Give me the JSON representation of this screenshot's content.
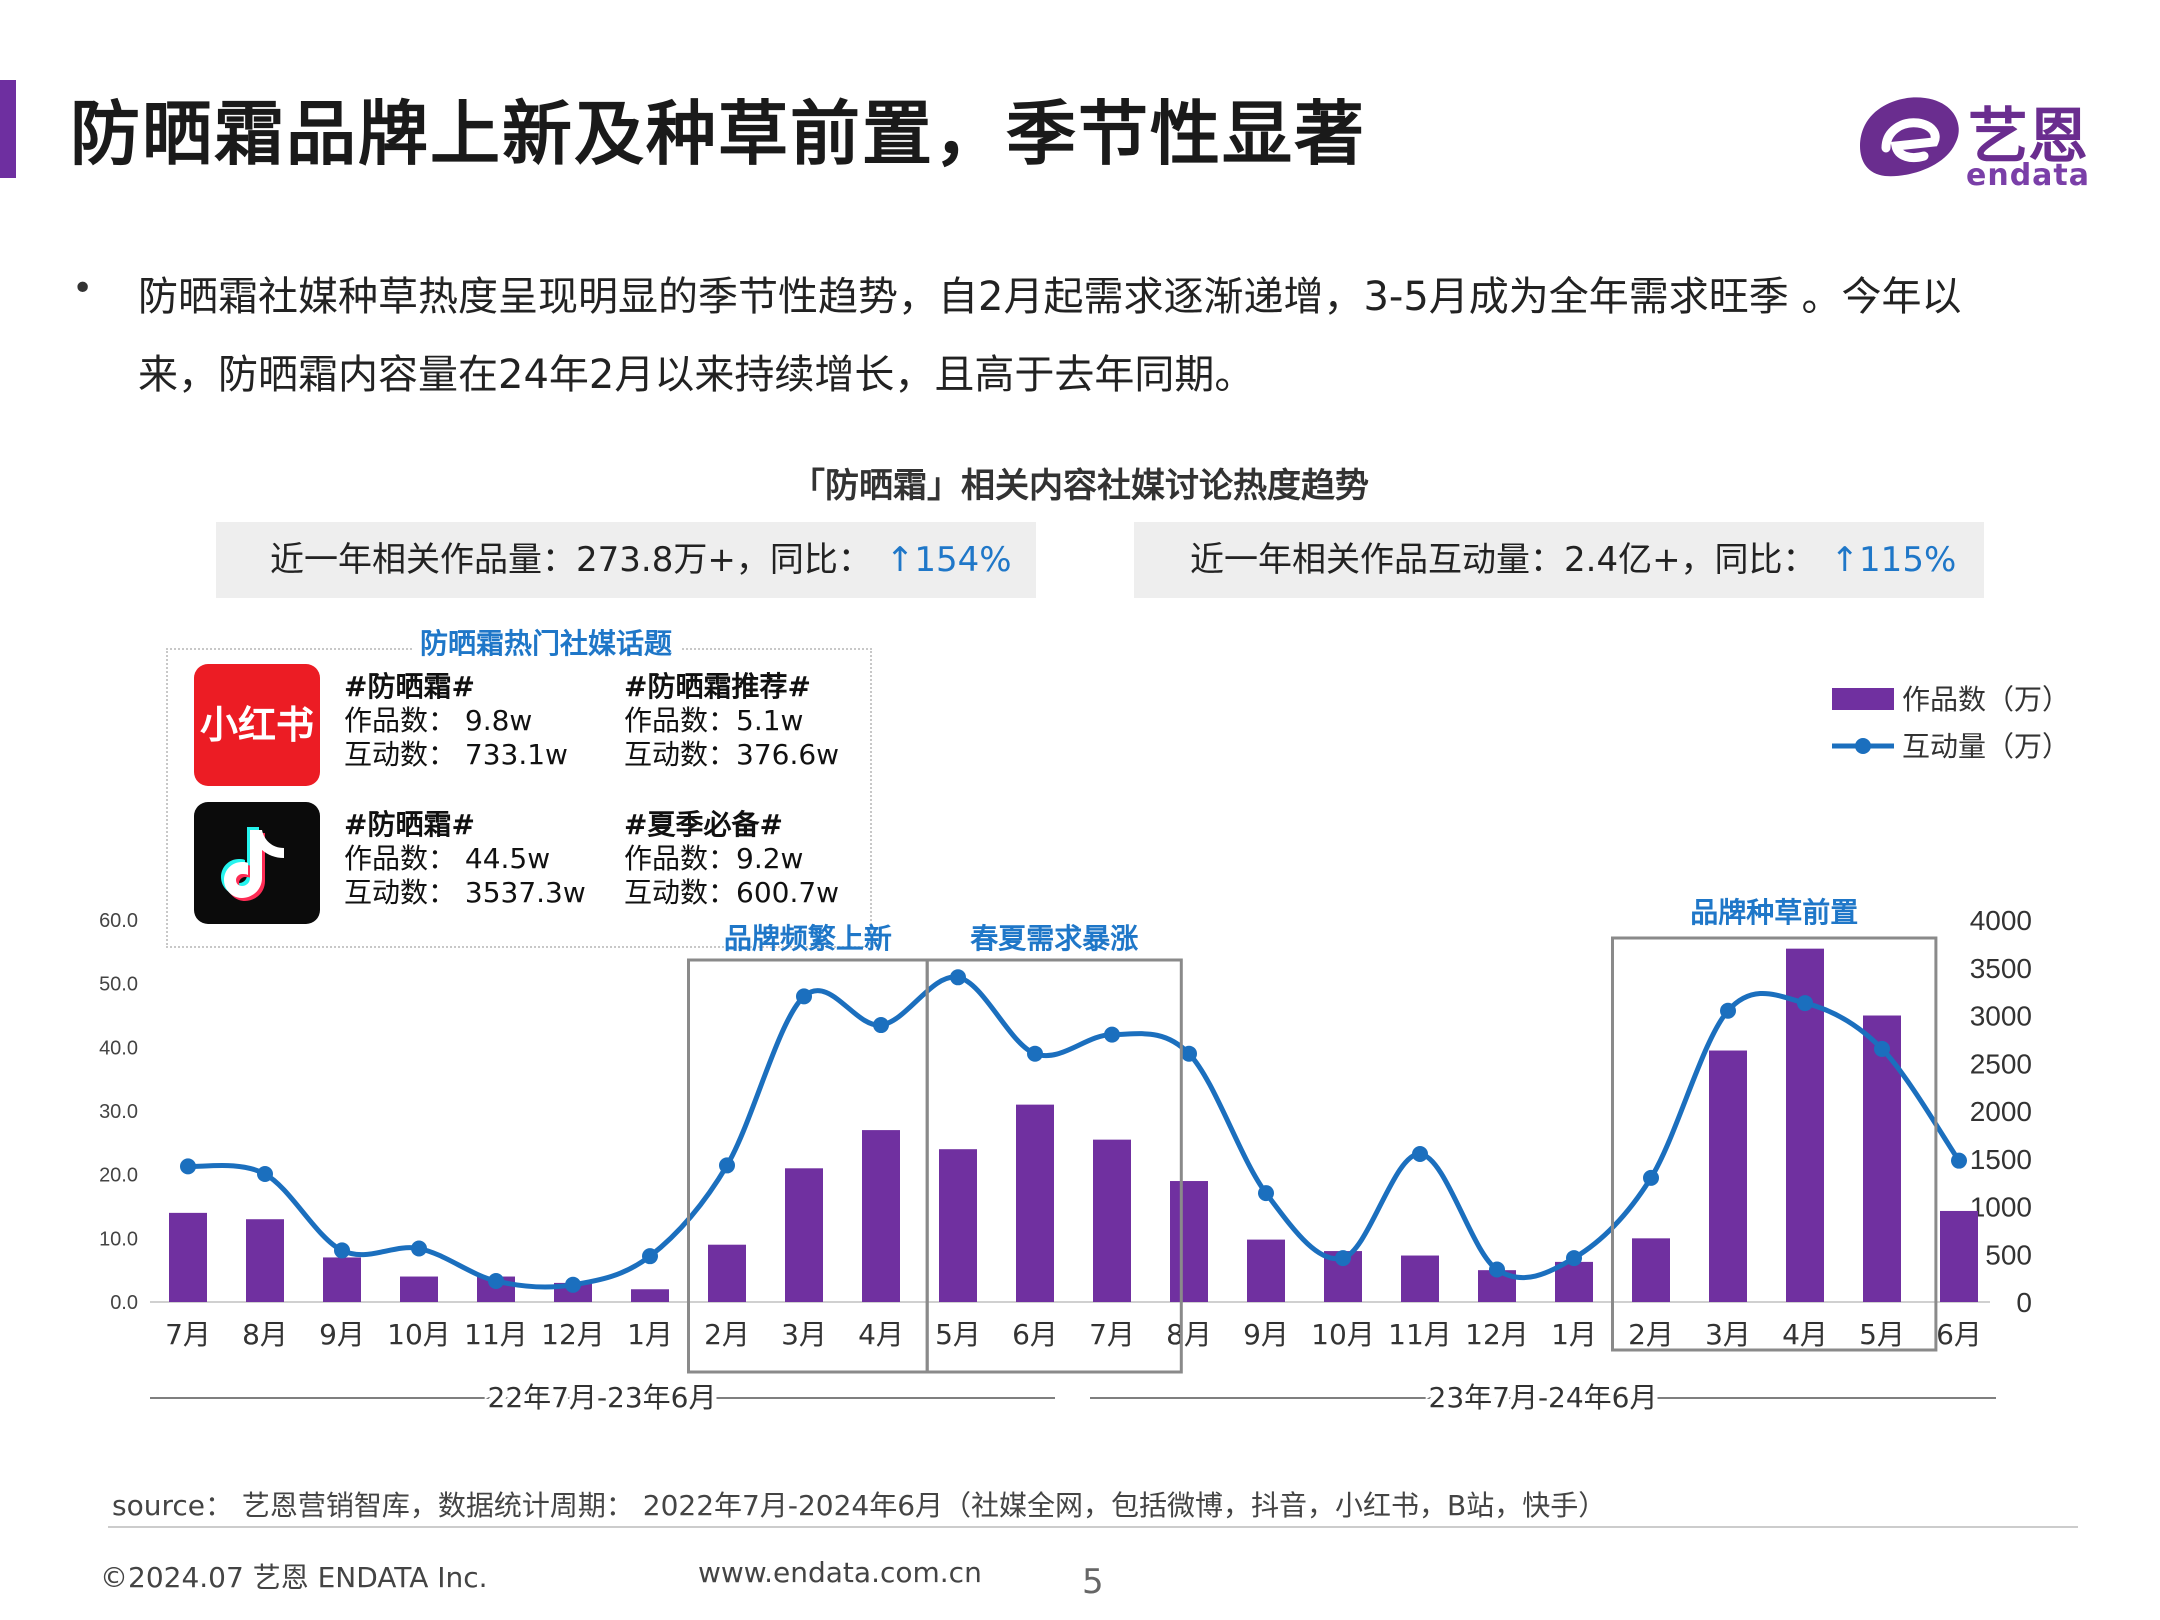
{
  "header": {
    "title": "防晒霜品牌上新及种草前置，季节性显著",
    "logo_cn": "艺恩",
    "logo_en": "endata"
  },
  "bullet": {
    "symbol": "•",
    "text": "防晒霜社媒种草热度呈现明显的季节性趋势，自2月起需求逐渐递增，3-5月成为全年需求旺季 。今年以来，防晒霜内容量在24年2月以来持续增长，且高于去年同期。"
  },
  "chart_title": "「防晒霜」相关内容社媒讨论热度趋势",
  "kpi": {
    "left_label": "近一年相关作品量：273.8万+，同比：",
    "left_value": "↑154%",
    "right_label": "近一年相关作品互动量：2.4亿+，同比：",
    "right_value": "↑115%"
  },
  "topics": {
    "title": "防晒霜热门社媒话题",
    "xhs_icon_text": "小红书",
    "items": [
      {
        "tag": "#防晒霜#",
        "works": "作品数：  9.8w",
        "interactions": "互动数：  733.1w"
      },
      {
        "tag": "#防晒霜推荐#",
        "works": "作品数：5.1w",
        "interactions": "互动数：376.6w"
      },
      {
        "tag": "#防晒霜#",
        "works": "作品数： 44.5w",
        "interactions": "互动数： 3537.3w"
      },
      {
        "tag": "#夏季必备#",
        "works": "作品数：9.2w",
        "interactions": "互动数：600.7w"
      }
    ]
  },
  "chart_data": {
    "type": "bar+line",
    "categories": [
      "7月",
      "8月",
      "9月",
      "10月",
      "11月",
      "12月",
      "1月",
      "2月",
      "3月",
      "4月",
      "5月",
      "6月",
      "7月",
      "8月",
      "9月",
      "10月",
      "11月",
      "12月",
      "1月",
      "2月",
      "3月",
      "4月",
      "5月",
      "6月"
    ],
    "series": [
      {
        "name": "作品数（万）",
        "type": "bar",
        "axis": "left",
        "color": "#7030a0",
        "values": [
          14,
          13,
          7,
          4,
          4,
          3,
          2,
          9,
          21,
          27,
          24,
          31,
          25.5,
          19,
          9.8,
          8,
          7.3,
          5,
          6.3,
          10,
          39.5,
          55.5,
          45,
          14.3
        ]
      },
      {
        "name": "互动量（万）",
        "type": "line",
        "axis": "right",
        "color": "#1b6fbe",
        "values": [
          1420,
          1340,
          540,
          560,
          220,
          180,
          480,
          1430,
          3200,
          2900,
          3400,
          2600,
          2800,
          2600,
          1140,
          460,
          1550,
          340,
          460,
          1300,
          3050,
          3130,
          2650,
          1480
        ]
      }
    ],
    "y_left": {
      "min": 0,
      "max": 60,
      "ticks": [
        "0.0",
        "10.0",
        "20.0",
        "30.0",
        "40.0",
        "50.0",
        "60.0"
      ]
    },
    "y_right": {
      "min": 0,
      "max": 4000,
      "ticks": [
        "0",
        "500",
        "1000",
        "1500",
        "2000",
        "2500",
        "3000",
        "3500",
        "4000"
      ]
    },
    "legend": {
      "position": "top-right",
      "bar_label": "作品数（万）",
      "line_label": "互动量（万）"
    },
    "period_labels": [
      "22年7月-23年6月",
      "23年7月-24年6月"
    ],
    "annotations": [
      "品牌频繁上新",
      "春夏需求暴涨",
      "品牌种草前置"
    ]
  },
  "footer": {
    "source": "source： 艺恩营销智库，数据统计周期： 2022年7月-2024年6月（社媒全网，包括微博，抖音，小红书，B站，快手）",
    "copyright": "©2024.07  艺恩 ENDATA Inc.",
    "website": "www.endata.com.cn",
    "page": "5"
  }
}
